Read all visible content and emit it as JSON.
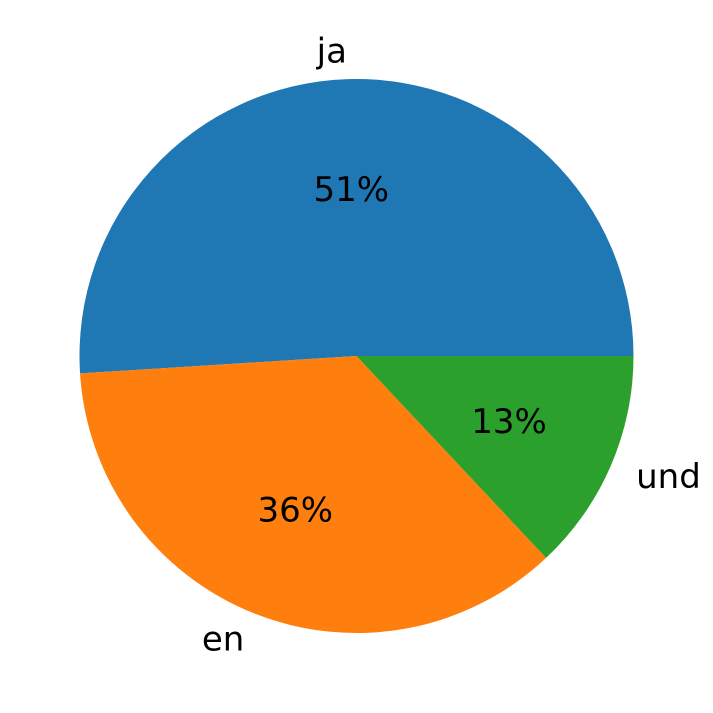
{
  "chart_data": {
    "type": "pie",
    "title": "",
    "categories": [
      "ja",
      "en",
      "und"
    ],
    "values": [
      51,
      36,
      13
    ],
    "value_labels": [
      "51%",
      "36%",
      "13%"
    ],
    "colors": [
      "#1f77b4",
      "#ff7f0e",
      "#2ca02c"
    ],
    "start_angle_deg": 0,
    "direction": "counterclockwise",
    "legend": "none"
  }
}
